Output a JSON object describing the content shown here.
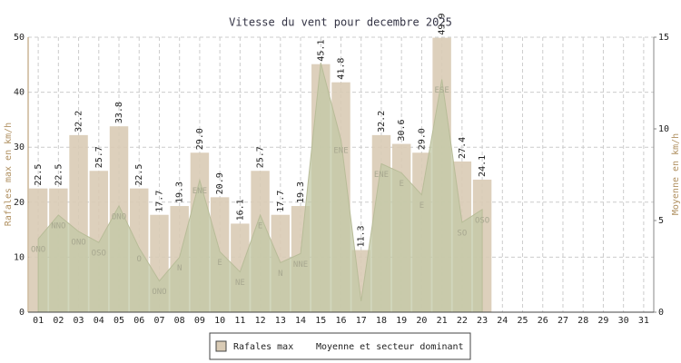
{
  "chart_data": {
    "type": "bar",
    "title": "Vitesse du vent pour decembre 2025",
    "y_label": "Rafales max en km/h",
    "y2_label": "Moyenne en km/h",
    "categories": [
      "01",
      "02",
      "03",
      "04",
      "05",
      "06",
      "07",
      "08",
      "09",
      "10",
      "11",
      "12",
      "13",
      "14",
      "15",
      "16",
      "17",
      "18",
      "19",
      "20",
      "21",
      "22",
      "23",
      "24",
      "25",
      "26",
      "27",
      "28",
      "29",
      "30",
      "31"
    ],
    "series": [
      {
        "name": "Rafales max",
        "color": "#d9cbb5",
        "values": [
          22.5,
          22.5,
          32.2,
          25.7,
          33.8,
          22.5,
          17.7,
          19.3,
          29.0,
          20.9,
          16.1,
          25.7,
          17.7,
          19.3,
          45.1,
          41.8,
          11.3,
          32.2,
          30.6,
          29.0,
          49.9,
          27.4,
          24.1,
          null,
          null,
          null,
          null,
          null,
          null,
          null,
          null
        ],
        "value_labels": [
          "22.5",
          "22.5",
          "32.2",
          "25.7",
          "33.8",
          "22.5",
          "17.7",
          "19.3",
          "29.0",
          "20.9",
          "16.1",
          "25.7",
          "17.7",
          "19.3",
          "45.1",
          "41.8",
          "11.3",
          "32.2",
          "30.6",
          "29.0",
          "49.9",
          "27.4",
          "24.1",
          null,
          null,
          null,
          null,
          null,
          null,
          null,
          null
        ]
      },
      {
        "name": "Moyenne et secteur dominant",
        "color": "#c2c8a6",
        "axis": "y2",
        "values": [
          4.0,
          5.3,
          4.4,
          3.8,
          5.8,
          3.5,
          1.7,
          3.0,
          7.2,
          3.3,
          2.2,
          5.3,
          2.7,
          3.2,
          13.6,
          9.4,
          0.6,
          8.1,
          7.6,
          6.4,
          12.7,
          4.9,
          5.6,
          null,
          null,
          null,
          null,
          null,
          null,
          null,
          null
        ],
        "sectors": [
          "ONO",
          "NNO",
          "ONO",
          "OSO",
          "ONO",
          "O",
          "ONO",
          "N",
          "ENE",
          "E",
          "NE",
          "E",
          "N",
          "NNE",
          null,
          "ENE",
          null,
          "ENE",
          "E",
          "E",
          "ESE",
          "SO",
          "OSO",
          null,
          null,
          null,
          null,
          null,
          null,
          null,
          null
        ]
      }
    ],
    "ylim": [
      0,
      50
    ],
    "yticks": [
      0,
      10,
      20,
      30,
      40,
      50
    ],
    "y2lim": [
      0,
      15
    ],
    "y2ticks": [
      0,
      5,
      10,
      15
    ],
    "grid": true
  }
}
